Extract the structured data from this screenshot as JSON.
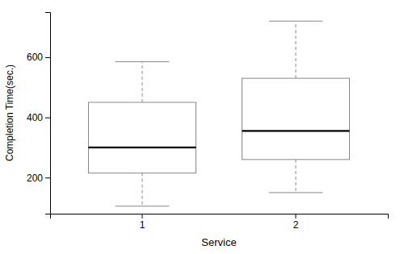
{
  "chart_data": {
    "type": "box",
    "xlabel": "Service",
    "ylabel": "Completion Time(sec.)",
    "categories": [
      "1",
      "2"
    ],
    "values": [
      {
        "whisker_low": 105,
        "q1": 215,
        "median": 300,
        "q3": 450,
        "whisker_high": 585
      },
      {
        "whisker_low": 150,
        "q1": 260,
        "median": 355,
        "q3": 530,
        "whisker_high": 720
      }
    ],
    "color": "#888888",
    "ylim": [
      80,
      750
    ],
    "yticks": [
      200,
      400,
      600
    ],
    "grid": false
  }
}
